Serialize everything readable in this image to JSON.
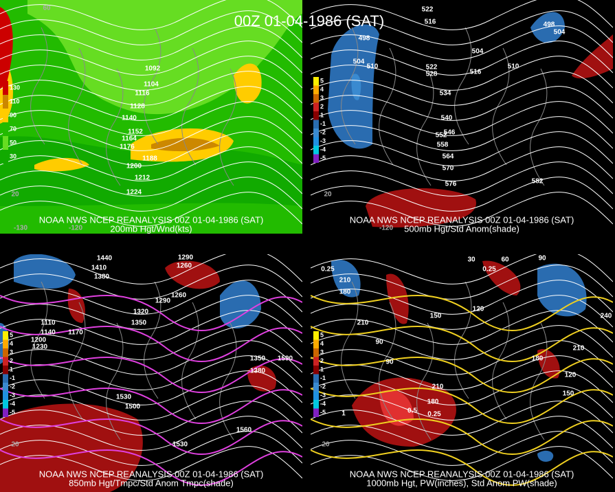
{
  "title": "00Z 01-04-1986 (SAT)",
  "panels": [
    {
      "caption": [
        "NOAA NWS NCEP REANALYSIS 00Z 01-04-1986 (SAT)",
        "200mb Hgt/Wnd(kts)"
      ],
      "contour_labels": [
        "1092",
        "1104",
        "1116",
        "1128",
        "1140",
        "1152",
        "1164",
        "1176",
        "1188",
        "1200",
        "1212",
        "1224"
      ],
      "legend": [
        "130",
        "110",
        "90",
        "70",
        "50",
        "30"
      ],
      "grid_labels": [
        "60",
        "20",
        "-130",
        "-120"
      ]
    },
    {
      "caption": [
        "NOAA NWS NCEP REANALYSIS 00Z 01-04-1986 (SAT)",
        "500mb Hgt/Std Anom(shade)"
      ],
      "contour_labels": [
        "522",
        "516",
        "498",
        "504",
        "510",
        "522",
        "528",
        "516",
        "504",
        "510",
        "534",
        "540",
        "546",
        "552",
        "558",
        "564",
        "570",
        "576",
        "582",
        "498",
        "504"
      ],
      "legend": [
        "5",
        "4",
        "3",
        "2",
        "1",
        "-1",
        "-2",
        "-3",
        "-4",
        "-5"
      ],
      "grid_labels": [
        "20",
        "-120"
      ]
    },
    {
      "caption": [
        "NOAA NWS NCEP REANALYSIS 00Z 01-04-1986 (SAT)",
        "850mb Hgt/Tmpc/Std Anom Tmpc(shade)"
      ],
      "contour_labels": [
        "1440",
        "1410",
        "1380",
        "1290",
        "1260",
        "1320",
        "1350",
        "1290",
        "1260",
        "1200",
        "1230",
        "1110",
        "1140",
        "1170",
        "1350",
        "1380",
        "1590",
        "1530",
        "1500",
        "1560",
        "1530"
      ],
      "legend": [
        "5",
        "4",
        "3",
        "2",
        "1",
        "-1",
        "-2",
        "-3",
        "-4",
        "-5"
      ],
      "grid_labels": [
        "20"
      ]
    },
    {
      "caption": [
        "NOAA NWS NCEP REANALYSIS 00Z 01-04-1986 (SAT)",
        "1000mb Hgt, PW(inches), Std Anom PW(shade)"
      ],
      "contour_labels": [
        "30",
        "60",
        "90",
        "0.25",
        "210",
        "180",
        "150",
        "120",
        "210",
        "90",
        "90",
        "210",
        "180",
        "240",
        "150",
        "0.25",
        "0.5",
        "0.25",
        "1",
        "180",
        "210",
        "120"
      ],
      "legend": [
        "5",
        "4",
        "3",
        "2",
        "1",
        "-1",
        "-2",
        "-3",
        "-4",
        "-5"
      ],
      "grid_labels": [
        "20"
      ]
    }
  ]
}
